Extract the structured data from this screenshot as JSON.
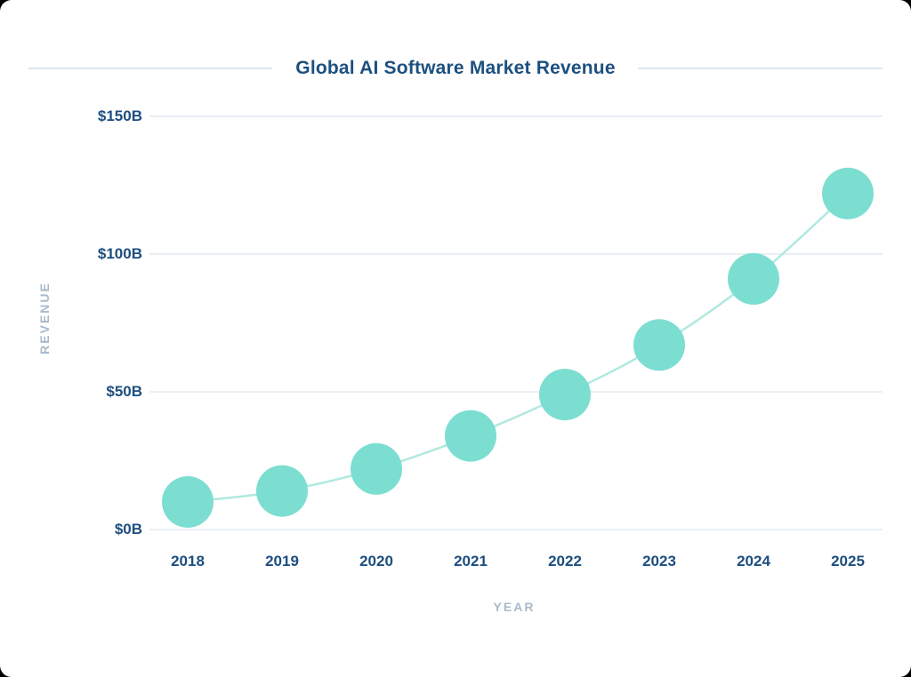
{
  "chart_data": {
    "type": "line",
    "title": "Global AI Software Market Revenue",
    "xlabel": "YEAR",
    "ylabel": "REVENUE",
    "categories": [
      "2018",
      "2019",
      "2020",
      "2021",
      "2022",
      "2023",
      "2024",
      "2025"
    ],
    "series": [
      {
        "name": "Global AI software market revenue ($B)",
        "values": [
          10,
          14,
          22,
          34,
          49,
          67,
          91,
          122
        ]
      }
    ],
    "y_ticks": [
      {
        "value": 150,
        "label": "$150B"
      },
      {
        "value": 100,
        "label": "$100B"
      },
      {
        "value": 50,
        "label": "$50B"
      },
      {
        "value": 0,
        "label": "$0B"
      }
    ],
    "ylim": [
      0,
      150
    ],
    "grid": true,
    "legend": false,
    "marker": {
      "shape": "circle",
      "radius_px": 29
    },
    "colors": {
      "point": "#7CDED1",
      "trend_line": "#B0E9E0",
      "gridline": "#E9EFF5",
      "axis_text": "#1D4E7F",
      "muted_text": "#A9BACB",
      "title": "#1D5080",
      "divider": "#DDE6EE",
      "background": "#FFFFFF"
    }
  }
}
